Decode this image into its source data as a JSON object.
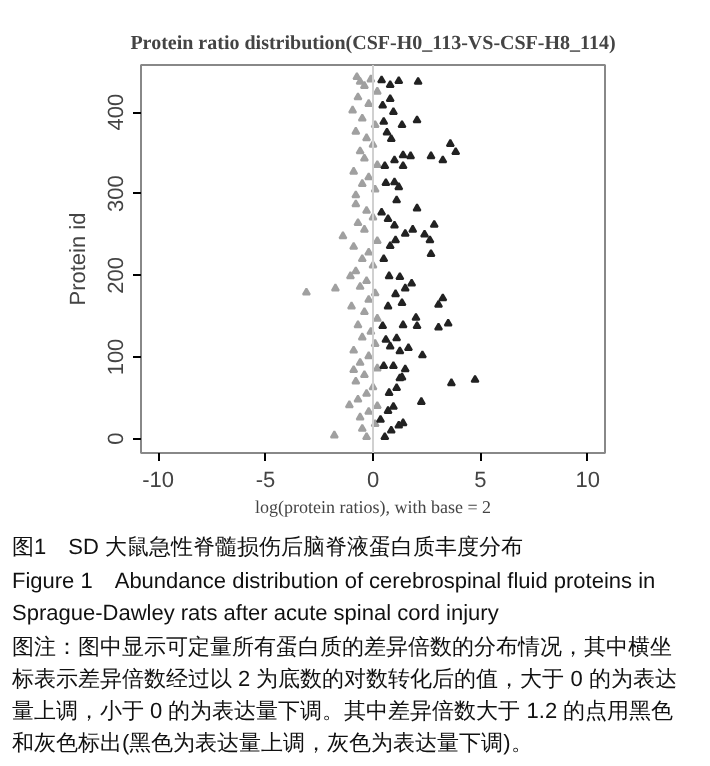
{
  "chart_data": {
    "type": "scatter",
    "title": "Protein ratio distribution(CSF-H0_113-VS-CSF-H8_114)",
    "xlabel": "log(protein ratios), with base = 2",
    "ylabel": "Protein id",
    "xlim": [
      -10.8,
      10.8
    ],
    "ylim": [
      -17.6,
      457.6
    ],
    "xticks": [
      -10,
      -5,
      0,
      5,
      10
    ],
    "yticks": [
      0,
      100,
      200,
      300,
      400
    ],
    "grid": false,
    "marker": "triangle",
    "ref_lines": [
      {
        "axis": "x",
        "value": 0,
        "color": "#d0d0d0"
      }
    ],
    "series": [
      {
        "color": "#a0a0a0",
        "x": [
          -3.1,
          -1.75,
          -1.4,
          -1.8,
          -1.1,
          -0.9,
          -1.05,
          -0.75,
          -0.8,
          -0.95,
          -0.3,
          -0.5,
          0.1,
          -0.6,
          -0.2,
          0.2,
          -0.7,
          -0.3,
          0.0,
          -0.8,
          -0.4,
          0.2,
          -0.6,
          -0.2,
          -0.9,
          0.1,
          -0.5,
          -0.1,
          -0.7,
          0.2,
          -0.4,
          -1.0,
          -0.2,
          0.1,
          -0.6,
          -0.3,
          -0.8,
          0.0,
          -0.5,
          -0.2,
          -0.9,
          0.2,
          -0.4,
          -0.7,
          0.0,
          -0.3,
          -0.8,
          0.1,
          -0.5,
          -0.2,
          -0.9,
          0.2,
          -0.4,
          -0.6,
          0.0,
          -0.3,
          -0.8,
          0.1,
          -0.5,
          -0.2,
          -0.7,
          0.2,
          -0.4,
          -0.1,
          -0.6
        ],
        "values": [
          179,
          184,
          248,
          4,
          41,
          84,
          199,
          443,
          298,
          402,
          2,
          12,
          18,
          26,
          33,
          40,
          48,
          55,
          63,
          70,
          78,
          86,
          93,
          101,
          108,
          116,
          124,
          131,
          139,
          147,
          155,
          162,
          170,
          178,
          186,
          193,
          205,
          212,
          220,
          228,
          235,
          242,
          256,
          264,
          271,
          279,
          287,
          305,
          312,
          320,
          327,
          335,
          343,
          352,
          360,
          368,
          376,
          384,
          392,
          410,
          418,
          425,
          432,
          440,
          437
        ]
      },
      {
        "color": "#222222",
        "x": [
          2.1,
          1.2,
          0.4,
          0.8,
          2.05,
          1.35,
          3.6,
          3.85,
          3.25,
          2.7,
          1.75,
          1.4,
          1.0,
          1.4,
          1.0,
          1.2,
          0.6,
          1.1,
          2.05,
          2.85,
          2.4,
          2.65,
          1.85,
          1.5,
          1.05,
          2.7,
          1.0,
          1.25,
          0.75,
          1.8,
          1.5,
          1.05,
          3.25,
          3.05,
          1.35,
          2.0,
          2.05,
          1.4,
          3.5,
          3.05,
          1.1,
          1.65,
          1.25,
          2.3,
          0.8,
          1.5,
          1.35,
          3.65,
          4.75,
          1.1,
          1.25,
          2.25,
          0.95,
          0.7,
          1.2,
          1.4,
          0.85,
          0.55,
          0.75,
          0.5,
          0.65,
          0.45,
          0.55,
          0.4,
          0.5,
          0.45,
          0.5,
          0.35,
          0.8,
          0.95,
          0.85,
          0.7,
          0.8,
          0.7,
          0.6,
          0.95
        ],
        "values": [
          437,
          438,
          439,
          433,
          390,
          384,
          361,
          351,
          341,
          346,
          346,
          347,
          341,
          334,
          314,
          308,
          313,
          292,
          282,
          262,
          250,
          243,
          256,
          251,
          243,
          226,
          261,
          198,
          199,
          190,
          184,
          177,
          172,
          164,
          166,
          148,
          138,
          139,
          141,
          136,
          123,
          111,
          107,
          102,
          113,
          85,
          75,
          68,
          72,
          62,
          74,
          45,
          39,
          34,
          16,
          19,
          10,
          2,
          56,
          388,
          375,
          408,
          334,
          277,
          220,
          138,
          89,
          23,
          416,
          400,
          367,
          269,
          236,
          162,
          121,
          89
        ]
      }
    ],
    "annotations": [
      "图1　SD 大鼠急性脊髓损伤后脑脊液蛋白质丰度分布",
      "Figure 1　Abundance distribution of cerebrospinal fluid proteins in Sprague-Dawley rats after acute spinal cord injury",
      "图注：图中显示可定量所有蛋白质的差异倍数的分布情况，其中横坐标表示差异倍数经过以 2 为底数的对数转化后的值，大于 0 的为表达量上调，小于 0 的为表达量下调。其中差异倍数大于 1.2 的点用黑色和灰色标出(黑色为表达量上调，灰色为表达量下调)。"
    ]
  }
}
